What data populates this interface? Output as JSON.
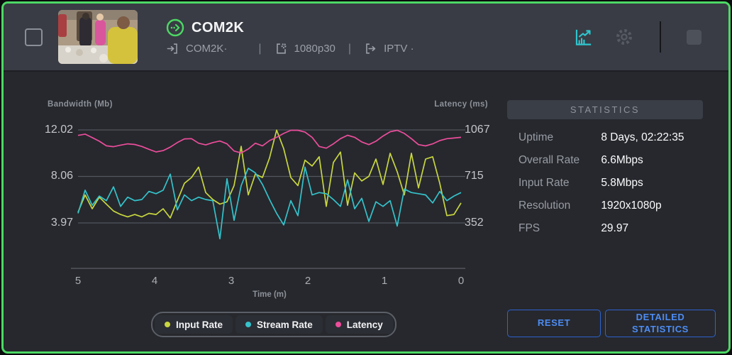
{
  "header": {
    "title": "COM2K",
    "source_label": "COM2K·",
    "encoding_label": "1080p30",
    "output_label": "IPTV ·",
    "separator": "|"
  },
  "stats": {
    "title": "STATISTICS",
    "rows": [
      {
        "label": "Uptime",
        "value": "8 Days, 02:22:35"
      },
      {
        "label": "Overall Rate",
        "value": "6.6Mbps"
      },
      {
        "label": "Input Rate",
        "value": "5.8Mbps"
      },
      {
        "label": "Resolution",
        "value": "1920x1080p"
      },
      {
        "label": "FPS",
        "value": "29.97"
      }
    ]
  },
  "buttons": {
    "reset": "RESET",
    "detailed": "DETAILED STATISTICS"
  },
  "colors": {
    "accent_green": "#4cd964",
    "accent_teal": "#2fc5ce",
    "button_blue": "#4d8cf3",
    "grid": "#53565e"
  },
  "chart_data": {
    "type": "line",
    "title": "",
    "grid": "horizontal-only",
    "legend_position": "bottom",
    "x_axis": {
      "label": "Time (m)",
      "ticks": [
        "5",
        "4",
        "3",
        "2",
        "1",
        "0"
      ],
      "range_minutes": [
        5,
        0
      ]
    },
    "y_left": {
      "label": "Bandwidth (Mb)",
      "ticks": [
        "12.02",
        "8.06",
        "3.97"
      ],
      "tick_values": [
        12.02,
        8.06,
        3.97
      ]
    },
    "y_right": {
      "label": "Latency (ms)",
      "ticks": [
        "1067",
        "715",
        "352"
      ],
      "tick_values": [
        1067,
        715,
        352
      ]
    },
    "series": [
      {
        "name": "Input Rate",
        "axis": "left",
        "color": "#c9d63f",
        "values": [
          4.9,
          6.4,
          5.2,
          6.2,
          5.6,
          5.0,
          4.7,
          4.5,
          4.7,
          4.5,
          4.8,
          4.7,
          5.2,
          4.4,
          5.9,
          7.4,
          7.9,
          8.8,
          6.6,
          6.0,
          5.6,
          5.8,
          7.2,
          10.6,
          6.4,
          8.2,
          7.9,
          9.6,
          12.0,
          10.4,
          7.9,
          7.2,
          9.4,
          8.9,
          9.7,
          5.4,
          9.2,
          10.1,
          5.5,
          8.3,
          7.6,
          8.0,
          9.5,
          7.3,
          10.0,
          8.4,
          6.4,
          10.0,
          7.0,
          9.5,
          9.7,
          7.4,
          4.6,
          4.7,
          5.7
        ]
      },
      {
        "name": "Stream Rate",
        "axis": "left",
        "color": "#35c2cb",
        "values": [
          4.8,
          6.8,
          5.5,
          6.3,
          5.9,
          7.1,
          5.4,
          6.2,
          5.9,
          6.0,
          6.7,
          6.5,
          6.8,
          8.2,
          5.1,
          6.4,
          5.9,
          6.2,
          6.0,
          5.9,
          2.6,
          7.8,
          4.2,
          7.2,
          8.7,
          8.3,
          7.3,
          6.0,
          4.8,
          3.8,
          5.9,
          4.6,
          8.8,
          6.4,
          6.6,
          6.5,
          6.0,
          5.4,
          7.7,
          5.2,
          6.1,
          4.1,
          5.8,
          5.4,
          5.9,
          3.7,
          6.9,
          6.6,
          6.5,
          6.4,
          5.7,
          6.7,
          5.9,
          6.3,
          6.6
        ]
      },
      {
        "name": "Latency",
        "axis": "right",
        "color": "#ec4d9b",
        "values": [
          1025,
          1035,
          1008,
          980,
          945,
          938,
          950,
          960,
          955,
          940,
          918,
          898,
          908,
          935,
          970,
          998,
          1000,
          965,
          952,
          970,
          982,
          960,
          905,
          890,
          920,
          965,
          945,
          985,
          1010,
          1040,
          1064,
          1064,
          1050,
          1010,
          940,
          927,
          960,
          1000,
          1026,
          1010,
          975,
          954,
          980,
          1020,
          1053,
          1064,
          1040,
          1000,
          954,
          944,
          960,
          985,
          1000,
          1005,
          1010
        ]
      }
    ]
  }
}
